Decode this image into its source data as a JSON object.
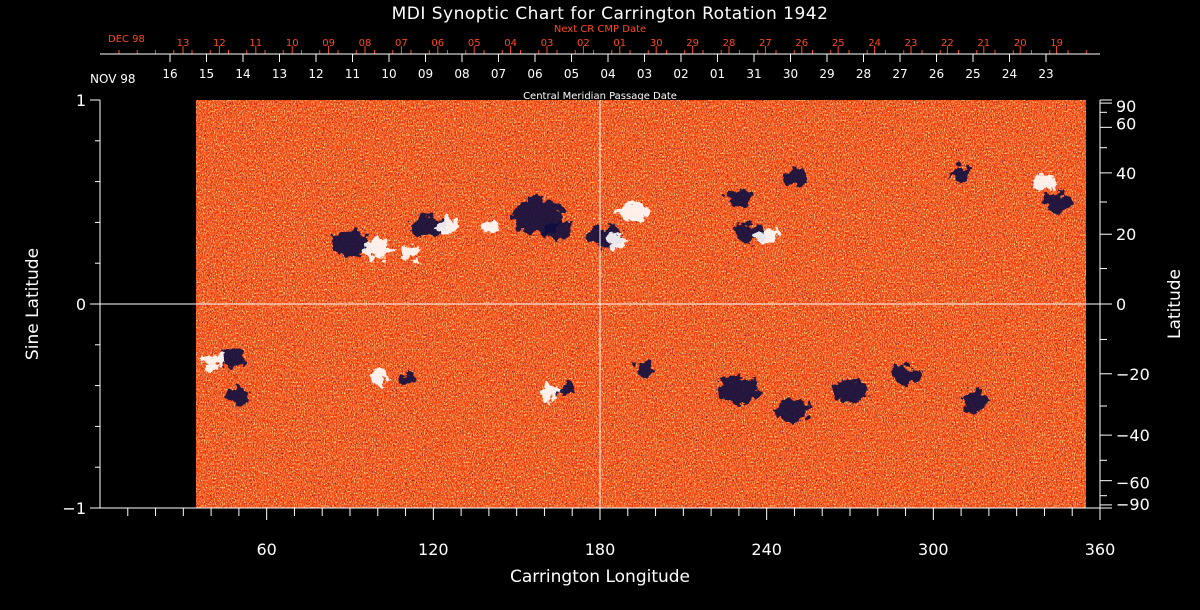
{
  "chart_data": {
    "type": "heatmap",
    "title": "MDI Synoptic Chart for Carrington Rotation 1942",
    "xlabel": "Carrington Longitude",
    "ylabel_left": "Sine Latitude",
    "ylabel_right": "Latitude",
    "xlim": [
      0,
      360
    ],
    "ylim": [
      -1,
      1
    ],
    "x_ticks": [
      60,
      120,
      180,
      240,
      300,
      360
    ],
    "y_ticks_left": [
      "−1",
      "0",
      "1"
    ],
    "y_ticks_right": [
      {
        "label": "90",
        "lat": 90
      },
      {
        "label": "60",
        "lat": 60
      },
      {
        "label": "40",
        "lat": 40
      },
      {
        "label": "20",
        "lat": 20
      },
      {
        "label": "0",
        "lat": 0
      },
      {
        "label": "−20",
        "lat": -20
      },
      {
        "label": "−40",
        "lat": -40
      },
      {
        "label": "−60",
        "lat": -60
      },
      {
        "label": "−90",
        "lat": -90
      }
    ],
    "data_start_longitude": 35,
    "crosshair": {
      "longitude": 180,
      "sine_latitude": 0
    },
    "top_axis": {
      "label": "Central Meridian Passage Date",
      "month_label": "NOV 98",
      "dates": [
        "16",
        "15",
        "14",
        "13",
        "12",
        "11",
        "10",
        "09",
        "08",
        "07",
        "06",
        "05",
        "04",
        "03",
        "02",
        "01",
        "31",
        "30",
        "29",
        "28",
        "27",
        "26",
        "25",
        "24",
        "23"
      ]
    },
    "next_cr_axis": {
      "label": "Next CR CMP Date",
      "month_label": "DEC 98",
      "dates": [
        "13",
        "12",
        "11",
        "10",
        "09",
        "08",
        "07",
        "06",
        "05",
        "04",
        "03",
        "02",
        "01",
        "30",
        "29",
        "28",
        "27",
        "26",
        "25",
        "24",
        "23",
        "22",
        "21",
        "20",
        "19"
      ]
    },
    "colors": {
      "background": "#ff4a12",
      "positive": "#ffffff",
      "negative": "#0a0a40",
      "accent": "#ff4a1c"
    }
  }
}
